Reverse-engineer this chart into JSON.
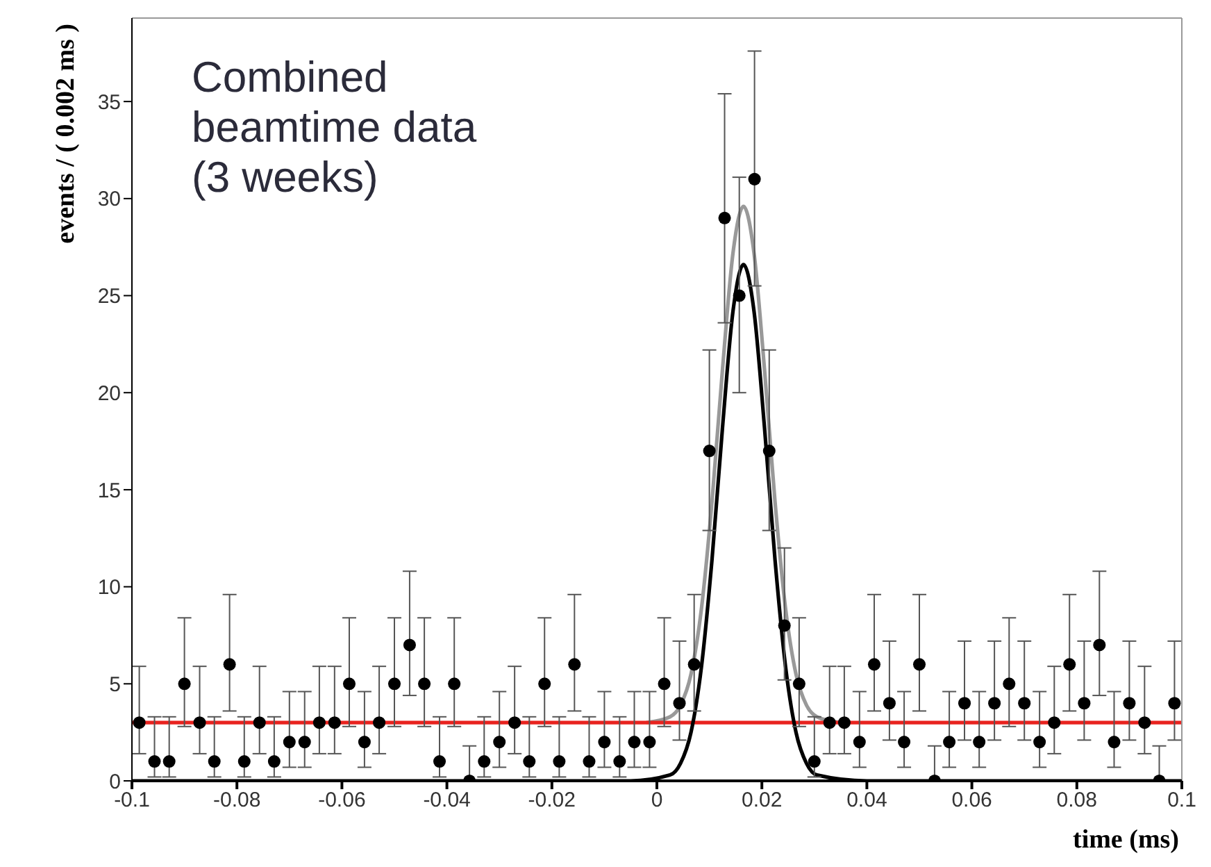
{
  "chart_data": {
    "type": "scatter",
    "xlabel": "time (ms)",
    "ylabel": "events / ( 0.002 ms )",
    "annotations": [
      "Combined\nbeamtime data\n(3 weeks)"
    ],
    "xlim": [
      -0.1,
      0.1
    ],
    "xticks": [
      -0.1,
      -0.08,
      -0.06,
      -0.04,
      -0.02,
      0,
      0.02,
      0.04,
      0.06,
      0.08,
      0.1
    ],
    "ylim": [
      0,
      39.3
    ],
    "yticks": [
      0,
      5,
      10,
      15,
      20,
      25,
      30,
      35
    ],
    "series": [
      {
        "type": "line",
        "color": "#999999",
        "x": [
          -0.002,
          0.0025,
          0.0045,
          0.0065,
          0.0085,
          0.0105,
          0.0125,
          0.0145,
          0.0165,
          0.0185,
          0.0205,
          0.0225,
          0.0245,
          0.0265,
          0.0285,
          0.0305,
          0.035
        ],
        "values": [
          3,
          3.3,
          3.9,
          5.5,
          8.9,
          14.4,
          21.2,
          27.2,
          29.6,
          27.2,
          21.2,
          14.4,
          8.9,
          5.5,
          3.9,
          3.3,
          3
        ]
      },
      {
        "type": "line",
        "color": "#e8231f",
        "x": [
          -0.1,
          0.1
        ],
        "values": [
          3,
          3
        ]
      },
      {
        "type": "line",
        "color": "#000000",
        "x": [
          -0.1,
          -0.005,
          0.0025,
          0.0045,
          0.0065,
          0.0085,
          0.0105,
          0.0125,
          0.0145,
          0.0165,
          0.0185,
          0.0205,
          0.0225,
          0.0245,
          0.0265,
          0.0285,
          0.0305,
          0.04,
          0.1
        ],
        "values": [
          0,
          0,
          0.3,
          0.9,
          2.5,
          5.9,
          11.4,
          18.2,
          24.2,
          26.6,
          24.2,
          18.2,
          11.4,
          5.9,
          2.5,
          0.9,
          0.3,
          0,
          0
        ]
      },
      {
        "marker": "circle",
        "color": "#000000",
        "x": [
          -0.0986,
          -0.0957,
          -0.0929,
          -0.09,
          -0.0871,
          -0.0843,
          -0.0814,
          -0.0786,
          -0.0757,
          -0.0729,
          -0.07,
          -0.0671,
          -0.0643,
          -0.0614,
          -0.0586,
          -0.0557,
          -0.0529,
          -0.05,
          -0.0471,
          -0.0443,
          -0.0414,
          -0.0386,
          -0.0357,
          -0.0329,
          -0.03,
          -0.0271,
          -0.0243,
          -0.0214,
          -0.0186,
          -0.0157,
          -0.0129,
          -0.01,
          -0.0071,
          -0.0043,
          -0.0014,
          0.0014,
          0.0043,
          0.0071,
          0.01,
          0.0129,
          0.0157,
          0.0186,
          0.0214,
          0.0243,
          0.0271,
          0.03,
          0.0329,
          0.0357,
          0.0386,
          0.0414,
          0.0443,
          0.0471,
          0.05,
          0.0529,
          0.0557,
          0.0586,
          0.0614,
          0.0643,
          0.0671,
          0.07,
          0.0729,
          0.0757,
          0.0786,
          0.0814,
          0.0843,
          0.0871,
          0.09,
          0.0929,
          0.0957,
          0.0986
        ],
        "values": [
          3,
          1,
          1,
          5,
          3,
          1,
          6,
          1,
          3,
          1,
          2,
          2,
          3,
          3,
          5,
          2,
          3,
          5,
          7,
          5,
          1,
          5,
          0,
          1,
          2,
          3,
          1,
          5,
          1,
          6,
          1,
          2,
          1,
          2,
          2,
          5,
          4,
          6,
          17,
          29,
          25,
          31,
          17,
          8,
          5,
          1,
          3,
          3,
          2,
          6,
          4,
          2,
          6,
          0,
          2,
          4,
          2,
          4,
          5,
          4,
          2,
          3,
          6,
          4,
          7,
          2,
          4,
          3,
          0,
          4
        ],
        "errors": [
          [
            1.4,
            5.9
          ],
          [
            0.2,
            3.3
          ],
          [
            0.2,
            3.3
          ],
          [
            2.8,
            8.4
          ],
          [
            1.4,
            5.9
          ],
          [
            0.2,
            3.3
          ],
          [
            3.6,
            9.6
          ],
          [
            0.2,
            3.3
          ],
          [
            1.4,
            5.9
          ],
          [
            0.2,
            3.3
          ],
          [
            0.7,
            4.6
          ],
          [
            0.7,
            4.6
          ],
          [
            1.4,
            5.9
          ],
          [
            1.4,
            5.9
          ],
          [
            2.8,
            8.4
          ],
          [
            0.7,
            4.6
          ],
          [
            1.4,
            5.9
          ],
          [
            2.8,
            8.4
          ],
          [
            4.4,
            10.8
          ],
          [
            2.8,
            8.4
          ],
          [
            0.2,
            3.3
          ],
          [
            2.8,
            8.4
          ],
          [
            0,
            1.8
          ],
          [
            0.2,
            3.3
          ],
          [
            0.7,
            4.6
          ],
          [
            1.4,
            5.9
          ],
          [
            0.2,
            3.3
          ],
          [
            2.8,
            8.4
          ],
          [
            0.2,
            3.3
          ],
          [
            3.6,
            9.6
          ],
          [
            0.2,
            3.3
          ],
          [
            0.7,
            4.6
          ],
          [
            0.2,
            3.3
          ],
          [
            0.7,
            4.6
          ],
          [
            0.7,
            4.6
          ],
          [
            2.8,
            8.4
          ],
          [
            2.1,
            7.2
          ],
          [
            3.6,
            9.6
          ],
          [
            12.9,
            22.2
          ],
          [
            23.6,
            35.4
          ],
          [
            20,
            31.1
          ],
          [
            25.5,
            37.6
          ],
          [
            12.9,
            22.2
          ],
          [
            5.2,
            12
          ],
          [
            2.8,
            8.4
          ],
          [
            0.2,
            3.3
          ],
          [
            1.4,
            5.9
          ],
          [
            1.4,
            5.9
          ],
          [
            0.7,
            4.6
          ],
          [
            3.6,
            9.6
          ],
          [
            2.1,
            7.2
          ],
          [
            0.7,
            4.6
          ],
          [
            3.6,
            9.6
          ],
          [
            0,
            1.8
          ],
          [
            0.7,
            4.6
          ],
          [
            2.1,
            7.2
          ],
          [
            0.7,
            4.6
          ],
          [
            2.1,
            7.2
          ],
          [
            2.8,
            8.4
          ],
          [
            2.1,
            7.2
          ],
          [
            0.7,
            4.6
          ],
          [
            1.4,
            5.9
          ],
          [
            3.6,
            9.6
          ],
          [
            2.1,
            7.2
          ],
          [
            4.4,
            10.8
          ],
          [
            0.7,
            4.6
          ],
          [
            2.1,
            7.2
          ],
          [
            1.4,
            5.9
          ],
          [
            0,
            1.8
          ],
          [
            2.1,
            7.2
          ]
        ]
      }
    ]
  }
}
